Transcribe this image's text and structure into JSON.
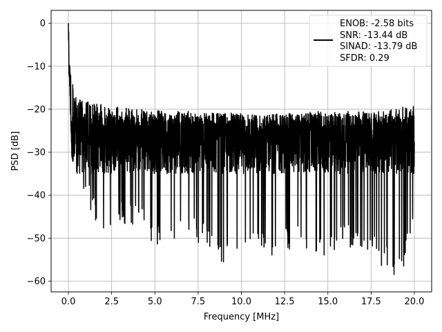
{
  "chart_data": {
    "type": "line",
    "title": "",
    "xlabel": "Frequency [MHz]",
    "ylabel": "PSD [dB]",
    "xlim": [
      -1.0,
      21.0
    ],
    "ylim": [
      -62.5,
      3.0
    ],
    "xticks": [
      0.0,
      2.5,
      5.0,
      7.5,
      10.0,
      12.5,
      15.0,
      17.5,
      20.0
    ],
    "xtick_labels": [
      "0.0",
      "2.5",
      "5.0",
      "7.5",
      "10.0",
      "12.5",
      "15.0",
      "17.5",
      "20.0"
    ],
    "yticks": [
      0,
      -10,
      -20,
      -30,
      -40,
      -50,
      -60
    ],
    "ytick_labels": [
      "0",
      "−10",
      "−20",
      "−30",
      "−40",
      "−50",
      "−60"
    ],
    "grid": true,
    "legend_position": "top-right",
    "legend_lines": [
      "ENOB: -2.58 bits",
      "SNR: -13.44 dB",
      "SINAD: -13.79 dB",
      "SFDR: 0.29"
    ],
    "series": [
      {
        "color": "#000000",
        "x_start": 0.0,
        "x_end": 20.0,
        "peak_value": 0.0,
        "envelope_max": [
          [
            0.0,
            0.0
          ],
          [
            0.1,
            -10
          ],
          [
            0.3,
            -15
          ],
          [
            0.5,
            -17
          ],
          [
            1.0,
            -18
          ],
          [
            2.0,
            -19
          ],
          [
            4.0,
            -20
          ],
          [
            6.0,
            -20.5
          ],
          [
            8.0,
            -20.5
          ],
          [
            10.0,
            -21
          ],
          [
            12.0,
            -21
          ],
          [
            14.0,
            -20.5
          ],
          [
            16.0,
            -20.5
          ],
          [
            18.0,
            -20.5
          ],
          [
            20.0,
            -19
          ]
        ],
        "envelope_min": [
          [
            0.0,
            -5
          ],
          [
            0.2,
            -31
          ],
          [
            0.5,
            -37
          ],
          [
            1.0,
            -42
          ],
          [
            1.5,
            -46
          ],
          [
            2.0,
            -50
          ],
          [
            3.0,
            -47
          ],
          [
            4.0,
            -47
          ],
          [
            5.0,
            -52
          ],
          [
            6.0,
            -50
          ],
          [
            8.0,
            -52
          ],
          [
            9.0,
            -56
          ],
          [
            10.0,
            -57
          ],
          [
            11.0,
            -53
          ],
          [
            12.0,
            -55
          ],
          [
            13.0,
            -52
          ],
          [
            14.0,
            -55
          ],
          [
            15.0,
            -54
          ],
          [
            16.0,
            -52
          ],
          [
            17.0,
            -53
          ],
          [
            18.0,
            -56
          ],
          [
            18.8,
            -59
          ],
          [
            19.5,
            -56
          ],
          [
            20.0,
            -45
          ]
        ],
        "typical_level": -28
      }
    ]
  }
}
